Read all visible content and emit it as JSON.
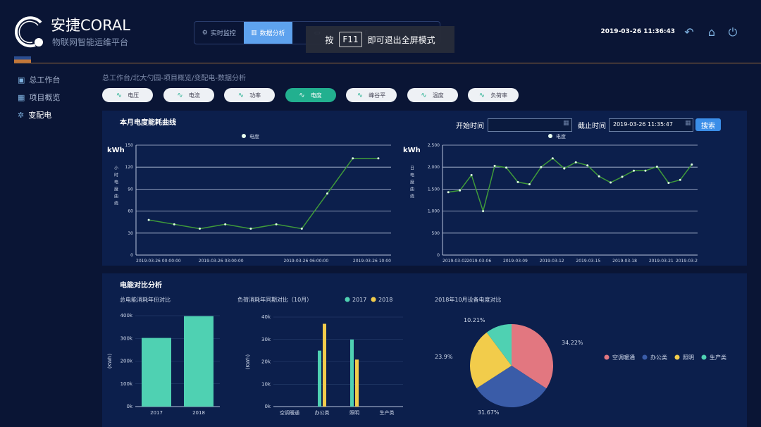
{
  "header": {
    "title": "安捷CORAL",
    "subtitle": "物联网智能运维平台",
    "datetime": "2019-03-26 11:36:43",
    "nav": [
      {
        "label": "实时监控",
        "icon": "gear-icon"
      },
      {
        "label": "数据分析",
        "icon": "bar-chart-icon",
        "active": true
      },
      {
        "label": "",
        "icon": "monitor-icon"
      },
      {
        "label": "",
        "icon": "doc-icon"
      },
      {
        "label": "",
        "icon": "lock-icon"
      }
    ],
    "toast": {
      "pre": "按",
      "key": "F11",
      "post": "即可退出全屏模式"
    }
  },
  "sidebar": {
    "items": [
      {
        "label": "总工作台",
        "icon": "monitor-icon"
      },
      {
        "label": "项目概览",
        "icon": "grid-icon"
      },
      {
        "label": "变配电",
        "icon": "tower-icon",
        "active": true
      }
    ]
  },
  "breadcrumb": "总工作台/北大勺园-项目概览/变配电-数据分析",
  "tabs": [
    {
      "label": "电压"
    },
    {
      "label": "电流"
    },
    {
      "label": "功率"
    },
    {
      "label": "电度",
      "active": true
    },
    {
      "label": "峰谷平"
    },
    {
      "label": "温度"
    },
    {
      "label": "负荷率"
    }
  ],
  "panel1": {
    "title": "本月电度能耗曲线",
    "start_label": "开始时间",
    "start_value": "",
    "end_label": "截止时间",
    "end_value": "2019-03-26 11:35:47",
    "search": "搜索"
  },
  "panel2": {
    "title": "电能对比分析"
  },
  "colors": {
    "line": "#3f9a3a",
    "teal": "#4fd1b2",
    "yellow": "#f2cc4b",
    "pink": "#e27780",
    "blue": "#3a5ca8"
  },
  "chart_data": [
    {
      "type": "line",
      "legend": "电度",
      "unit": "kWh",
      "ylabel": "小时电度曲线",
      "ylim": [
        0,
        150
      ],
      "yticks": [
        "0",
        "30",
        "60",
        "90",
        "120",
        "150"
      ],
      "xticks": [
        "2019-03-26 00:00:00",
        "2019-03-26 03:00:00",
        "2019-03-26 06:00:00",
        "2019-03-26 10:00"
      ],
      "values": [
        48,
        42,
        36,
        42,
        36,
        42,
        36,
        84,
        132,
        132
      ]
    },
    {
      "type": "line",
      "legend": "电度",
      "unit": "kWh",
      "ylabel": "日电度曲线",
      "ylim": [
        0,
        2500
      ],
      "yticks": [
        "0",
        "500",
        "1,000",
        "1,500",
        "2,000",
        "2,500"
      ],
      "xticks": [
        "2019-03-02",
        "2019-03-06",
        "2019-03-09",
        "2019-03-12",
        "2019-03-15",
        "2019-03-18",
        "2019-03-21",
        "2019-03-2"
      ],
      "values": [
        1430,
        1470,
        1820,
        1000,
        2030,
        1990,
        1660,
        1610,
        2000,
        2200,
        1970,
        2110,
        2040,
        1790,
        1650,
        1780,
        1920,
        1920,
        2010,
        1640,
        1710,
        2060
      ]
    },
    {
      "type": "bar",
      "title": "总电能消耗年份对比",
      "ylabel": "(KWh)",
      "ylim": [
        0,
        400000
      ],
      "yticks": [
        "0k",
        "100k",
        "200k",
        "300k",
        "400k"
      ],
      "categories": [
        "2017",
        "2018"
      ],
      "values": [
        302000,
        398000
      ]
    },
    {
      "type": "bar",
      "title": "负荷消耗年同期对比（10月）",
      "ylabel": "(KWh)",
      "ylim": [
        0,
        40000
      ],
      "yticks": [
        "0k",
        "10k",
        "20k",
        "30k",
        "40k"
      ],
      "categories": [
        "空调暖通",
        "办公类",
        "照明",
        "生产类"
      ],
      "series": [
        {
          "name": "2017",
          "values": [
            0,
            25000,
            30000,
            0
          ]
        },
        {
          "name": "2018",
          "values": [
            0,
            37000,
            21000,
            0
          ]
        }
      ]
    },
    {
      "type": "pie",
      "title": "2018年10月设备电度对比",
      "categories": [
        "空调暖通",
        "办公类",
        "照明",
        "生产类"
      ],
      "values": [
        34.22,
        31.67,
        23.9,
        10.21
      ],
      "labels": [
        "34.22%",
        "31.67%",
        "23.9%",
        "10.21%"
      ]
    }
  ]
}
